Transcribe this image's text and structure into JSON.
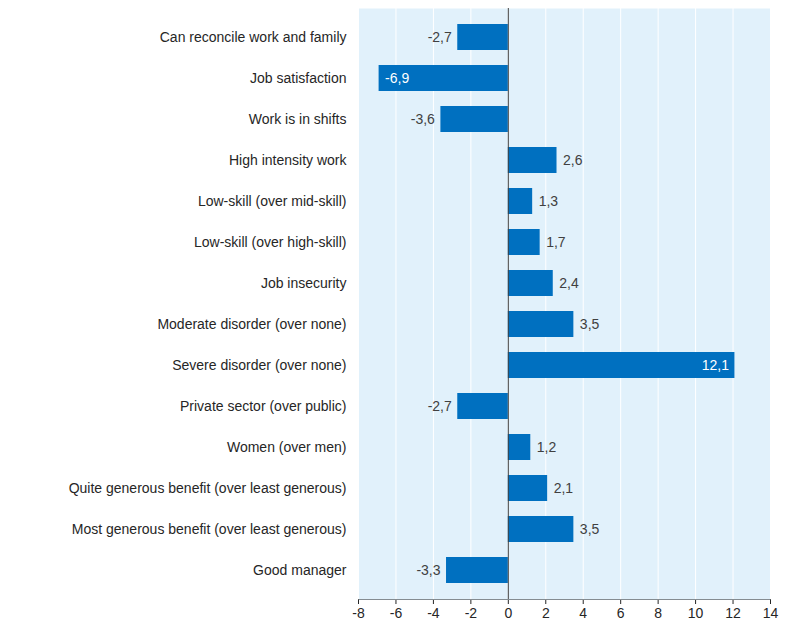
{
  "chart_data": {
    "type": "bar",
    "orientation": "horizontal",
    "categories": [
      "Can reconcile work and family",
      "Job satisfaction",
      "Work is in shifts",
      "High intensity work",
      "Low-skill (over mid-skill)",
      "Low-skill (over high-skill)",
      "Job insecurity",
      "Moderate disorder (over none)",
      "Severe disorder (over none)",
      "Private sector (over public)",
      "Women (over men)",
      "Quite generous benefit (over least generous)",
      "Most generous benefit (over least generous)",
      "Good manager"
    ],
    "values": [
      -2.7,
      -6.9,
      -3.6,
      2.6,
      1.3,
      1.7,
      2.4,
      3.5,
      12.1,
      -2.7,
      1.2,
      2.1,
      3.5,
      -3.3
    ],
    "value_labels": [
      "-2,7",
      "-6,9",
      "-3,6",
      "2,6",
      "1,3",
      "1,7",
      "2,4",
      "3,5",
      "12,1",
      "-2,7",
      "1,2",
      "2,1",
      "3,5",
      "-3,3"
    ],
    "color": "#0070c0",
    "xlim": [
      -8,
      14
    ],
    "xticks": [
      -8,
      -6,
      -4,
      -2,
      0,
      2,
      4,
      6,
      8,
      10,
      12,
      14
    ],
    "grid": true,
    "data_labels": true
  }
}
